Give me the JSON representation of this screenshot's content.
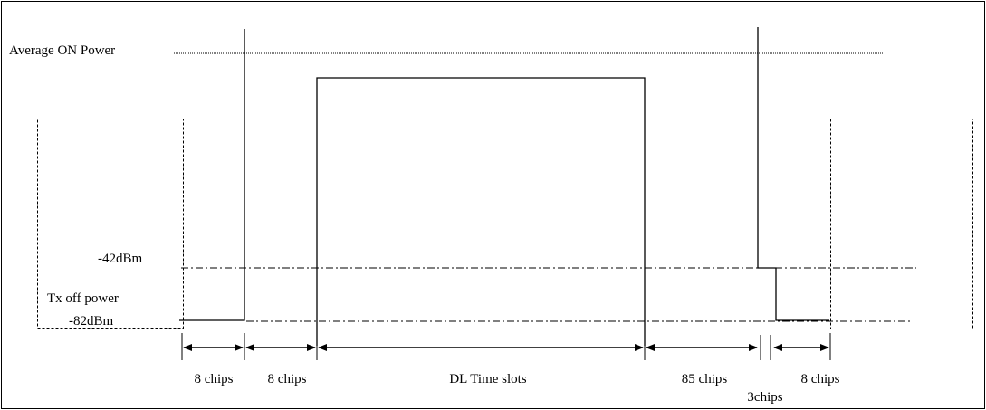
{
  "labels": {
    "average_on_power": "Average ON Power",
    "minus42": "-42dBm",
    "tx_off_power": "Tx off power",
    "minus82": "-82dBm"
  },
  "intervals": [
    {
      "label": "8 chips"
    },
    {
      "label": "8 chips"
    },
    {
      "label": "DL Time slots"
    },
    {
      "label": "85 chips"
    },
    {
      "label": "3chips"
    },
    {
      "label": "8 chips"
    }
  ]
}
